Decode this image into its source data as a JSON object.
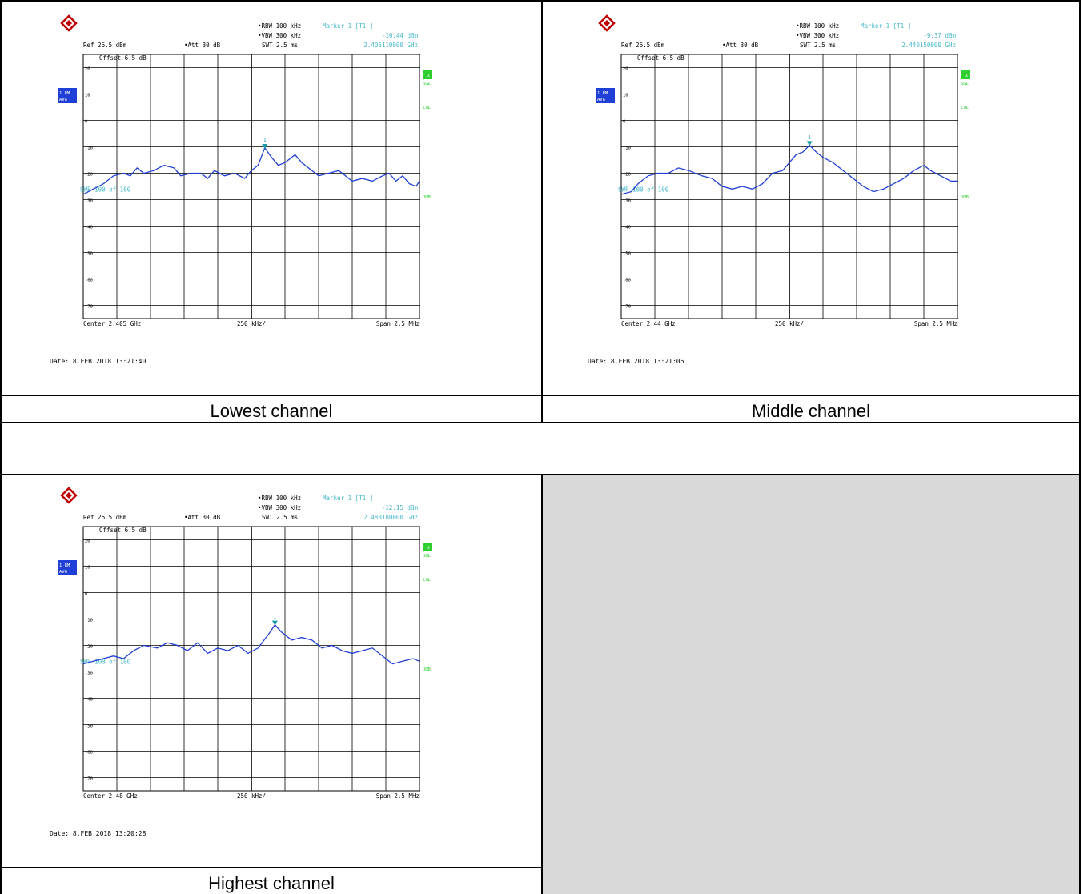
{
  "captions": {
    "lowest": "Lowest channel",
    "middle": "Middle channel",
    "highest": "Highest channel"
  },
  "chart_data": [
    {
      "type": "line",
      "ref": "Ref  26.5 dBm",
      "att": "Att  30 dB",
      "rbw": "RBW 100 kHz",
      "vbw": "VBW 300 kHz",
      "swt": "SWT 2.5 ms",
      "marker_title": "Marker 1 [T1 ]",
      "marker_level": "-10.44 dBm",
      "marker_freq": "2.405110000 GHz",
      "offset": "Offset  6.5 dB",
      "swp": "SWP   100 of  100",
      "center": "Center 2.405 GHz",
      "perdiv": "250 kHz/",
      "span": "Span 2.5 MHz",
      "date": "Date: 8.FEB.2018  13:21:40",
      "y_ticks": [
        "20",
        "10",
        "0",
        "-10",
        "-20",
        "-30",
        "-40",
        "-50",
        "-60",
        "-70"
      ],
      "ylim": [
        -75,
        25
      ],
      "xlim": [
        0,
        1
      ],
      "marker": {
        "x": 0.54,
        "y": -10.44,
        "label": "1"
      },
      "trace_color": "#1f3fd6",
      "trace": [
        [
          0,
          -28
        ],
        [
          0.03,
          -26
        ],
        [
          0.06,
          -24
        ],
        [
          0.09,
          -21
        ],
        [
          0.12,
          -20
        ],
        [
          0.14,
          -21
        ],
        [
          0.16,
          -18
        ],
        [
          0.18,
          -20
        ],
        [
          0.21,
          -19
        ],
        [
          0.24,
          -17
        ],
        [
          0.27,
          -18
        ],
        [
          0.29,
          -21
        ],
        [
          0.32,
          -20
        ],
        [
          0.35,
          -20
        ],
        [
          0.37,
          -22
        ],
        [
          0.39,
          -19
        ],
        [
          0.42,
          -21
        ],
        [
          0.45,
          -20
        ],
        [
          0.48,
          -22
        ],
        [
          0.5,
          -19
        ],
        [
          0.52,
          -17
        ],
        [
          0.54,
          -10.4
        ],
        [
          0.56,
          -14
        ],
        [
          0.58,
          -17
        ],
        [
          0.6,
          -16
        ],
        [
          0.63,
          -13
        ],
        [
          0.65,
          -16
        ],
        [
          0.67,
          -18
        ],
        [
          0.7,
          -21
        ],
        [
          0.73,
          -20
        ],
        [
          0.76,
          -19
        ],
        [
          0.78,
          -21
        ],
        [
          0.8,
          -23
        ],
        [
          0.83,
          -22
        ],
        [
          0.86,
          -23
        ],
        [
          0.89,
          -21
        ],
        [
          0.91,
          -20
        ],
        [
          0.93,
          -23
        ],
        [
          0.95,
          -21
        ],
        [
          0.97,
          -24
        ],
        [
          0.99,
          -25
        ],
        [
          1,
          -23
        ]
      ]
    },
    {
      "type": "line",
      "ref": "Ref  26.5 dBm",
      "att": "Att  30 dB",
      "rbw": "RBW 100 kHz",
      "vbw": "VBW 300 kHz",
      "swt": "SWT 2.5 ms",
      "marker_title": "Marker 1 [T1 ]",
      "marker_level": "-9.37 dBm",
      "marker_freq": "2.440150000 GHz",
      "offset": "Offset  6.5 dB",
      "swp": "SWP   100 of  100",
      "center": "Center 2.44 GHz",
      "perdiv": "250 kHz/",
      "span": "Span 2.5 MHz",
      "date": "Date: 8.FEB.2018  13:21:06",
      "y_ticks": [
        "20",
        "10",
        "0",
        "-10",
        "-20",
        "-30",
        "-40",
        "-50",
        "-60",
        "-70"
      ],
      "ylim": [
        -75,
        25
      ],
      "xlim": [
        0,
        1
      ],
      "marker": {
        "x": 0.56,
        "y": -9.37,
        "label": "1"
      },
      "trace_color": "#1f3fd6",
      "trace": [
        [
          0,
          -28
        ],
        [
          0.03,
          -27
        ],
        [
          0.05,
          -24
        ],
        [
          0.08,
          -21
        ],
        [
          0.11,
          -20
        ],
        [
          0.14,
          -20
        ],
        [
          0.17,
          -18
        ],
        [
          0.2,
          -19
        ],
        [
          0.24,
          -21
        ],
        [
          0.27,
          -22
        ],
        [
          0.3,
          -25
        ],
        [
          0.33,
          -26
        ],
        [
          0.36,
          -25
        ],
        [
          0.39,
          -26
        ],
        [
          0.42,
          -24
        ],
        [
          0.45,
          -20
        ],
        [
          0.48,
          -19
        ],
        [
          0.5,
          -16
        ],
        [
          0.52,
          -13
        ],
        [
          0.54,
          -12
        ],
        [
          0.56,
          -9.4
        ],
        [
          0.58,
          -12
        ],
        [
          0.6,
          -14
        ],
        [
          0.63,
          -16
        ],
        [
          0.66,
          -19
        ],
        [
          0.69,
          -22
        ],
        [
          0.72,
          -25
        ],
        [
          0.75,
          -27
        ],
        [
          0.78,
          -26
        ],
        [
          0.81,
          -24
        ],
        [
          0.84,
          -22
        ],
        [
          0.87,
          -19
        ],
        [
          0.9,
          -17
        ],
        [
          0.92,
          -19
        ],
        [
          0.95,
          -21
        ],
        [
          0.98,
          -23
        ],
        [
          1,
          -23
        ]
      ]
    },
    {
      "type": "line",
      "ref": "Ref  26.5 dBm",
      "att": "Att  30 dB",
      "rbw": "RBW 100 kHz",
      "vbw": "VBW 300 kHz",
      "swt": "SWT 2.5 ms",
      "marker_title": "Marker 1 [T1 ]",
      "marker_level": "-12.15 dBm",
      "marker_freq": "2.480180000 GHz",
      "offset": "Offset  6.5 dB",
      "swp": "SWP   100 of  100",
      "center": "Center 2.48 GHz",
      "perdiv": "250 kHz/",
      "span": "Span 2.5 MHz",
      "date": "Date: 8.FEB.2018  13:20:28",
      "y_ticks": [
        "20",
        "10",
        "0",
        "-10",
        "-20",
        "-30",
        "-40",
        "-50",
        "-60",
        "-70"
      ],
      "ylim": [
        -75,
        25
      ],
      "xlim": [
        0,
        1
      ],
      "marker": {
        "x": 0.57,
        "y": -12.15,
        "label": "1"
      },
      "trace_color": "#1f3fd6",
      "trace": [
        [
          0,
          -27
        ],
        [
          0.03,
          -26
        ],
        [
          0.06,
          -25
        ],
        [
          0.09,
          -24
        ],
        [
          0.12,
          -25
        ],
        [
          0.15,
          -22
        ],
        [
          0.18,
          -20
        ],
        [
          0.22,
          -21
        ],
        [
          0.25,
          -19
        ],
        [
          0.28,
          -20
        ],
        [
          0.31,
          -22
        ],
        [
          0.34,
          -19
        ],
        [
          0.37,
          -23
        ],
        [
          0.4,
          -21
        ],
        [
          0.43,
          -22
        ],
        [
          0.46,
          -20
        ],
        [
          0.49,
          -23
        ],
        [
          0.52,
          -21
        ],
        [
          0.55,
          -16
        ],
        [
          0.57,
          -12.2
        ],
        [
          0.59,
          -15
        ],
        [
          0.62,
          -18
        ],
        [
          0.65,
          -17
        ],
        [
          0.68,
          -18
        ],
        [
          0.71,
          -21
        ],
        [
          0.74,
          -20
        ],
        [
          0.77,
          -22
        ],
        [
          0.8,
          -23
        ],
        [
          0.83,
          -22
        ],
        [
          0.86,
          -21
        ],
        [
          0.89,
          -24
        ],
        [
          0.92,
          -27
        ],
        [
          0.95,
          -26
        ],
        [
          0.98,
          -25
        ],
        [
          1,
          -26
        ]
      ]
    }
  ]
}
